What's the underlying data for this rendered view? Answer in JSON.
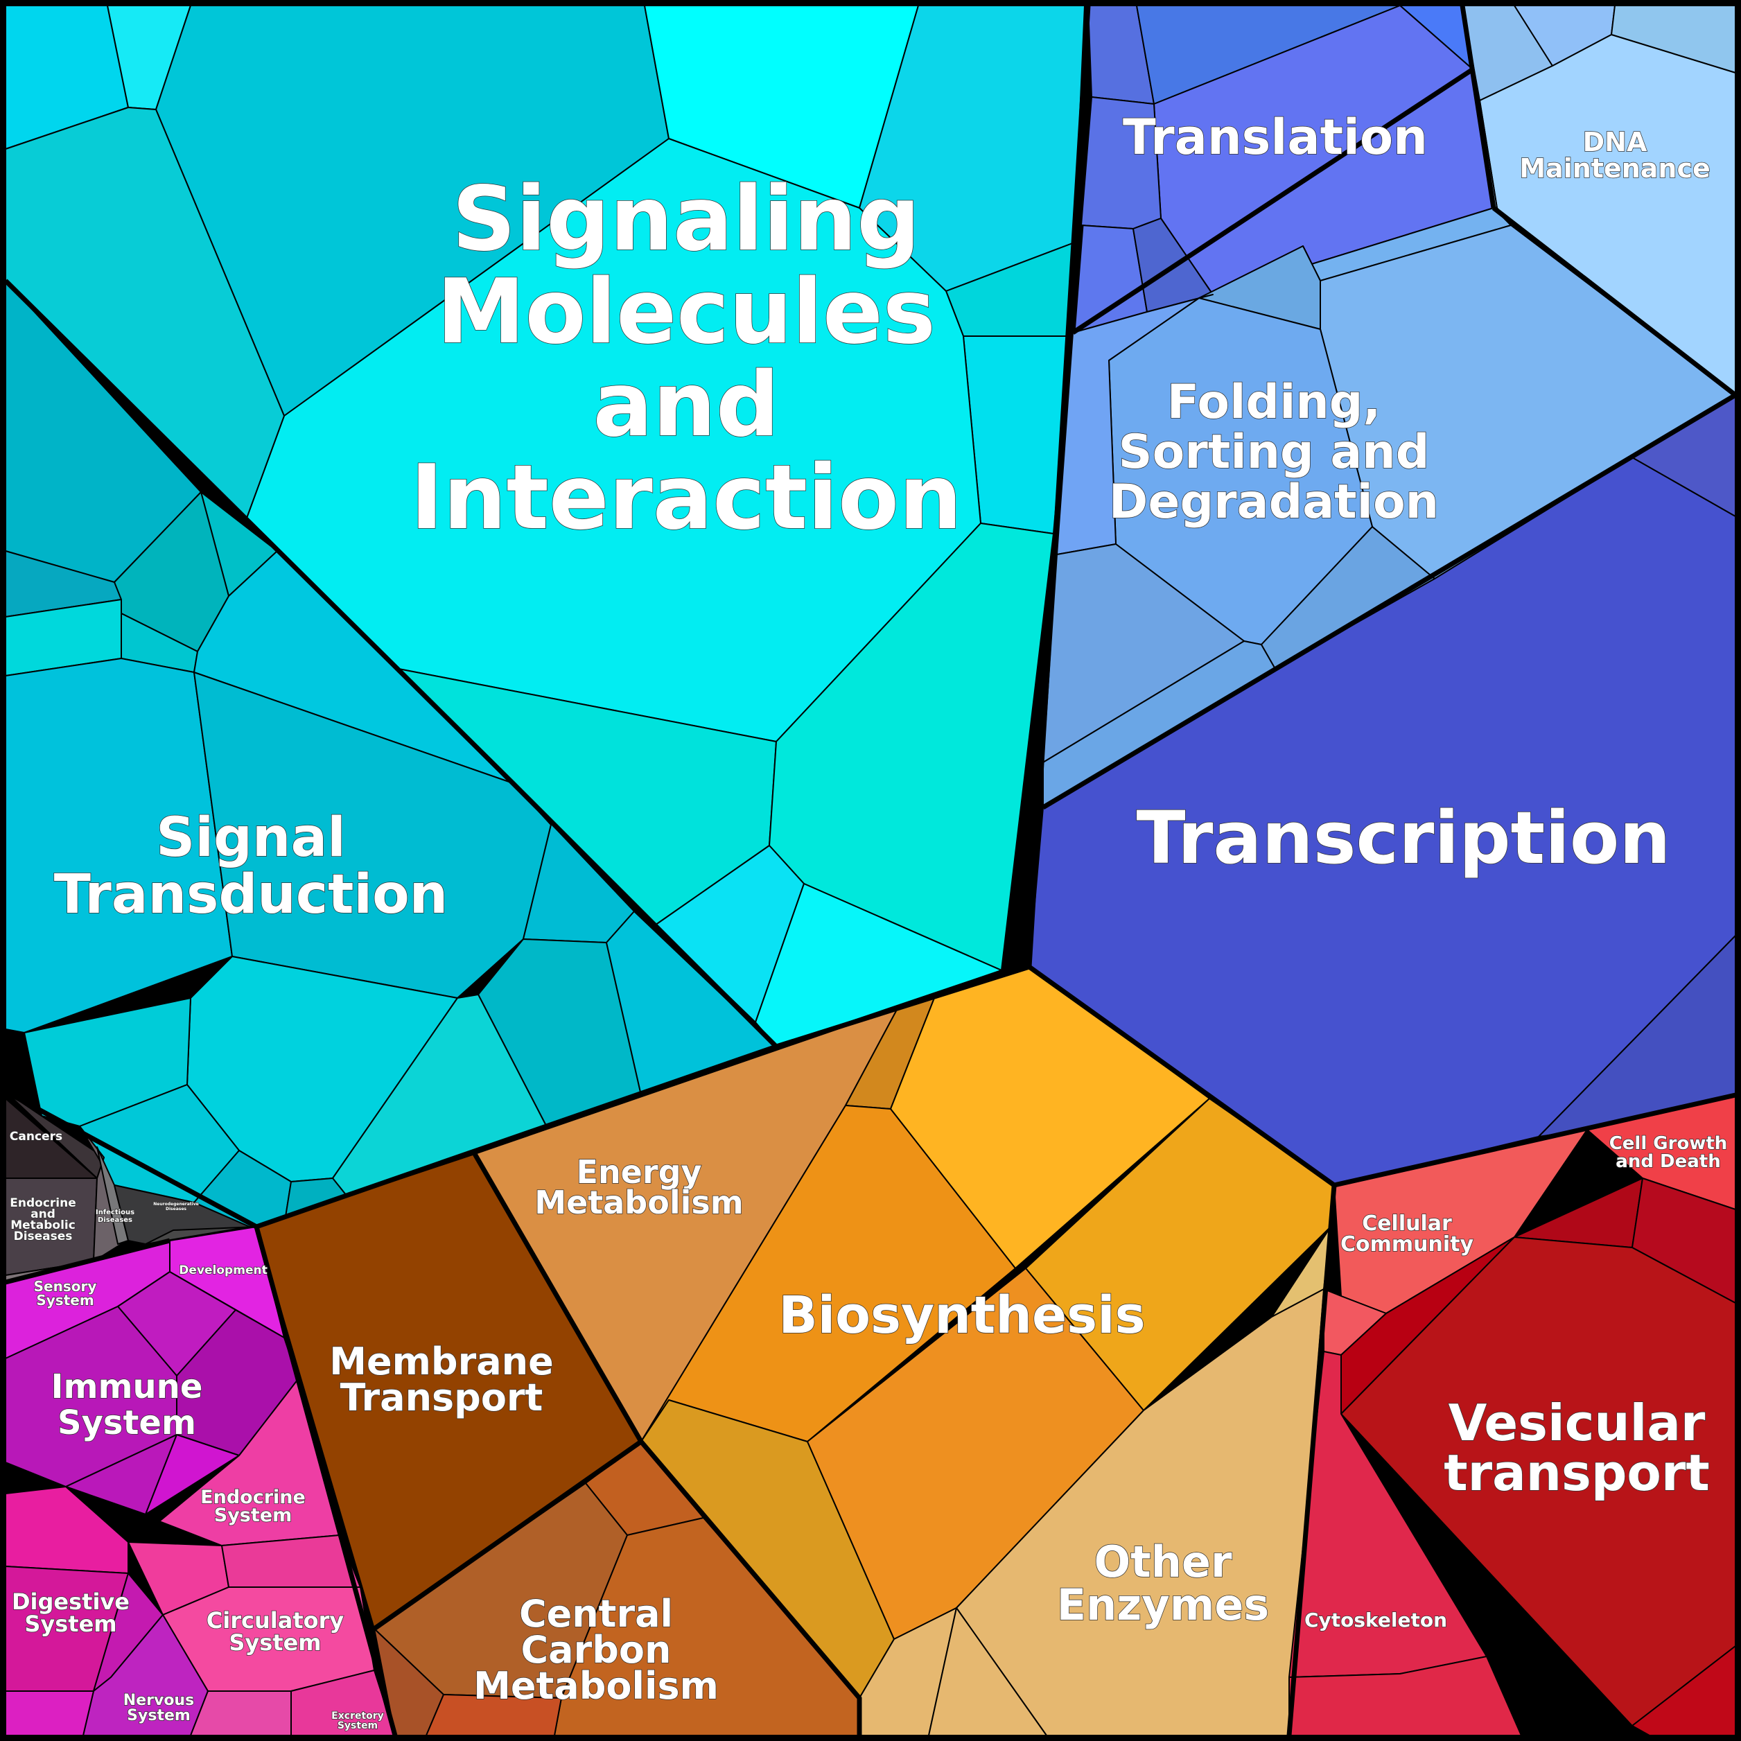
{
  "title": "",
  "labels": {
    "signaling": [
      "Signaling",
      "Molecules",
      "and",
      "Interaction"
    ],
    "signal_transduction": [
      "Signal",
      "Transduction"
    ],
    "translation": [
      "Translation"
    ],
    "dna_maintenance": [
      "DNA",
      "Maintenance"
    ],
    "folding": [
      "Folding,",
      "Sorting and",
      "Degradation"
    ],
    "transcription": [
      "Transcription"
    ],
    "energy": [
      "Energy",
      "Metabolism"
    ],
    "biosynthesis": [
      "Biosynthesis"
    ],
    "membrane": [
      "Membrane",
      "Transport"
    ],
    "central_carbon": [
      "Central",
      "Carbon",
      "Metabolism"
    ],
    "other_enzymes": [
      "Other",
      "Enzymes"
    ],
    "cellular_community": [
      "Cellular",
      "Community"
    ],
    "cell_growth": [
      "Cell Growth",
      "and Death"
    ],
    "vesicular": [
      "Vesicular",
      "transport"
    ],
    "cytoskeleton": [
      "Cytoskeleton"
    ],
    "cancers": [
      "Cancers"
    ],
    "endocrine_metabolic": [
      "Endocrine",
      "and",
      "Metabolic",
      "Diseases"
    ],
    "infectious": [
      "Infectious",
      "Diseases"
    ],
    "neurodegenerative": [
      "Neurodegenerative",
      "Diseases"
    ],
    "development": [
      "Development"
    ],
    "sensory": [
      "Sensory",
      "System"
    ],
    "immune": [
      "Immune",
      "System"
    ],
    "endocrine_system": [
      "Endocrine",
      "System"
    ],
    "digestive": [
      "Digestive",
      "System"
    ],
    "circulatory": [
      "Circulatory",
      "System"
    ],
    "nervous": [
      "Nervous",
      "System"
    ],
    "excretory": [
      "Excretory",
      "System"
    ]
  },
  "colors": {
    "cyan": "#00d6ee",
    "blue_dark": "#4652cf",
    "blue_light": "#78acf5",
    "orange": "#f0a020",
    "brown": "#934200",
    "red": "#b81418",
    "magenta": "#c21ec6",
    "pink": "#f03c9c",
    "gray": "#4a4448"
  }
}
